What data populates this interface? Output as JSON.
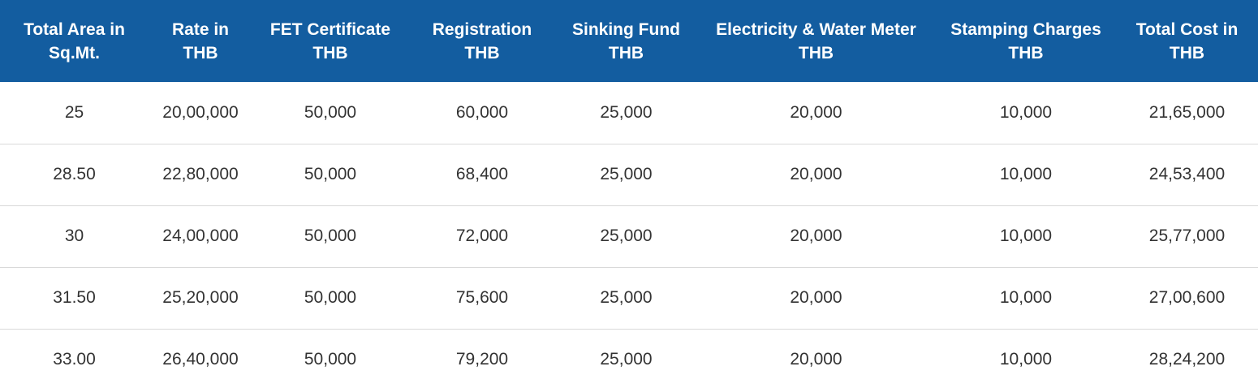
{
  "table": {
    "headers": [
      [
        "Total Area in",
        "Sq.Mt."
      ],
      [
        "Rate in",
        "THB"
      ],
      [
        "FET Certificate",
        "THB"
      ],
      [
        "Registration",
        "THB"
      ],
      [
        "Sinking Fund",
        "THB"
      ],
      [
        "Electricity & Water Meter",
        "THB"
      ],
      [
        "Stamping Charges",
        "THB"
      ],
      [
        "Total Cost in",
        "THB"
      ]
    ],
    "rows": [
      [
        "25",
        "20,00,000",
        "50,000",
        "60,000",
        "25,000",
        "20,000",
        "10,000",
        "21,65,000"
      ],
      [
        "28.50",
        "22,80,000",
        "50,000",
        "68,400",
        "25,000",
        "20,000",
        "10,000",
        "24,53,400"
      ],
      [
        "30",
        "24,00,000",
        "50,000",
        "72,000",
        "25,000",
        "20,000",
        "10,000",
        "25,77,000"
      ],
      [
        "31.50",
        "25,20,000",
        "50,000",
        "75,600",
        "25,000",
        "20,000",
        "10,000",
        "27,00,600"
      ],
      [
        "33.00",
        "26,40,000",
        "50,000",
        "79,200",
        "25,000",
        "20,000",
        "10,000",
        "28,24,200"
      ]
    ]
  }
}
